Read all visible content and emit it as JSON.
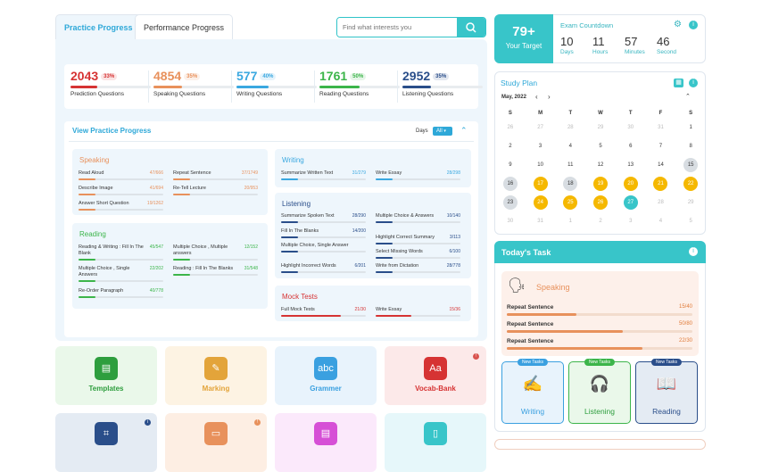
{
  "tabs": {
    "practice": "Practice Progress",
    "performance": "Performance Progress"
  },
  "search": {
    "placeholder": "Find what interests you"
  },
  "stats": [
    {
      "value": "2043",
      "pct": "33%",
      "label": "Prediction Questions",
      "color": "#d63333",
      "fill": 0.33
    },
    {
      "value": "4854",
      "pct": "35%",
      "label": "Speaking Questions",
      "color": "#e8915c",
      "fill": 0.35
    },
    {
      "value": "577",
      "pct": "40%",
      "label": "Writing Questions",
      "color": "#3aa8e0",
      "fill": 0.4
    },
    {
      "value": "1761",
      "pct": "50%",
      "label": "Reading Questions",
      "color": "#3cb54a",
      "fill": 0.5
    },
    {
      "value": "2952",
      "pct": "35%",
      "label": "Listening Questions",
      "color": "#2a4e8a",
      "fill": 0.35
    }
  ],
  "view": {
    "title": "View Practice Progress",
    "days_label": "Days",
    "days_value": "All"
  },
  "speaking": {
    "title": "Speaking",
    "items": [
      {
        "name": "Read Aloud",
        "value": "47/666",
        "fill": 0.07
      },
      {
        "name": "Repeat Sentence",
        "value": "37/1749",
        "fill": 0.02
      },
      {
        "name": "Describe Image",
        "value": "41/694",
        "fill": 0.06
      },
      {
        "name": "Re-Tell Lecture",
        "value": "20/953",
        "fill": 0.02
      },
      {
        "name": "Answer Short Question",
        "value": "19/1262",
        "fill": 0.02
      }
    ]
  },
  "reading": {
    "title": "Reading",
    "items": [
      {
        "name": "Reading & Writing : Fill In The Blank",
        "value": "45/547",
        "fill": 0.08
      },
      {
        "name": "Multiple Choice , Multiple answers",
        "value": "12/152",
        "fill": 0.08
      },
      {
        "name": "Multiple Choice , Single Answers",
        "value": "22/202",
        "fill": 0.11
      },
      {
        "name": "Reading : Fill In The Blanks",
        "value": "31/548",
        "fill": 0.06
      },
      {
        "name": "Re-Order Paragraph",
        "value": "40/778",
        "fill": 0.05
      }
    ]
  },
  "writing": {
    "title": "Writing",
    "items": [
      {
        "name": "Summarize Written Text",
        "value": "31/279",
        "fill": 0.11
      },
      {
        "name": "Write Essay",
        "value": "28/298",
        "fill": 0.09
      }
    ]
  },
  "listening": {
    "title": "Listening",
    "items": [
      {
        "name": "Summarize Spoken Text",
        "value": "28/290",
        "fill": 0.1
      },
      {
        "name": "Multiple Choice & Answers",
        "value": "10/140",
        "fill": 0.07
      },
      {
        "name": "Fill In The Blanks",
        "value": "14/200",
        "fill": 0.07
      },
      {
        "name": "Highlight Correct Summary",
        "value": "3/113",
        "fill": 0.03
      },
      {
        "name": "Multiple Choice, Single Answer",
        "value": "",
        "fill": 0.05
      },
      {
        "name": "Select Missing Words",
        "value": "6/100",
        "fill": 0.06
      },
      {
        "name": "Highlight Incorrect Words",
        "value": "6/201",
        "fill": 0.03
      },
      {
        "name": "Write from Dictation",
        "value": "28/778",
        "fill": 0.04
      }
    ]
  },
  "mock": {
    "title": "Mock Tests",
    "items": [
      {
        "name": "Full Mock Tests",
        "value": "21/30",
        "fill": 0.7
      },
      {
        "name": "Write Essay",
        "value": "15/36",
        "fill": 0.42
      }
    ]
  },
  "tiles": [
    {
      "label": "Templates",
      "bg": "#eaf8ea",
      "color": "#2e9e3e",
      "icon": "▤"
    },
    {
      "label": "Marking",
      "bg": "#fdf3e3",
      "color": "#e3a43a",
      "icon": "✎"
    },
    {
      "label": "Grammer",
      "bg": "#e8f3fc",
      "color": "#3aa0e0",
      "icon": "abc"
    },
    {
      "label": "Vocab-Bank",
      "bg": "#fce9e9",
      "color": "#d63333",
      "icon": "Aa"
    }
  ],
  "target": {
    "value": "79+",
    "label": "Your Target"
  },
  "countdown": {
    "title": "Exam Countdown",
    "units": [
      {
        "value": "10",
        "label": "Days"
      },
      {
        "value": "11",
        "label": "Hours"
      },
      {
        "value": "57",
        "label": "Minutes"
      },
      {
        "value": "46",
        "label": "Second"
      }
    ]
  },
  "study": {
    "title": "Study Plan",
    "month": "May, 2022",
    "weekdays": [
      "S",
      "M",
      "T",
      "W",
      "T",
      "F",
      "S"
    ],
    "weeks": [
      [
        "26",
        "27",
        "28",
        "29",
        "30",
        "31",
        "1"
      ],
      [
        "2",
        "3",
        "4",
        "5",
        "6",
        "7",
        "8"
      ],
      [
        "9",
        "10",
        "11",
        "12",
        "13",
        "14",
        "15"
      ],
      [
        "16",
        "17",
        "18",
        "19",
        "20",
        "21",
        "22"
      ],
      [
        "23",
        "24",
        "25",
        "26",
        "27",
        "28",
        "29"
      ],
      [
        "30",
        "31",
        "1",
        "2",
        "3",
        "4",
        "5"
      ]
    ]
  },
  "today": {
    "title": "Today's Task",
    "section": "Speaking",
    "items": [
      {
        "name": "Repeat Sentence",
        "value": "15/40",
        "fill": 0.375
      },
      {
        "name": "Repeat Sentence",
        "value": "50/80",
        "fill": 0.625
      },
      {
        "name": "Repeat Sentence",
        "value": "22/30",
        "fill": 0.73
      }
    ]
  },
  "new_tasks": [
    {
      "badge": "New Tasks",
      "label": "Writing",
      "bg": "#e8f3fc",
      "border": "#3aa0e0",
      "badge_bg": "#3aa0e0",
      "color": "#3aa0e0",
      "icon": "✍"
    },
    {
      "badge": "New Tasks",
      "label": "Listening",
      "bg": "#eaf8ea",
      "border": "#3cb54a",
      "badge_bg": "#3cb54a",
      "color": "#2e9e3e",
      "icon": "🎧"
    },
    {
      "badge": "New Tasks",
      "label": "Reading",
      "bg": "#e4ebf3",
      "border": "#2a4e8a",
      "badge_bg": "#2a4e8a",
      "color": "#2a4e8a",
      "icon": "📖"
    }
  ]
}
